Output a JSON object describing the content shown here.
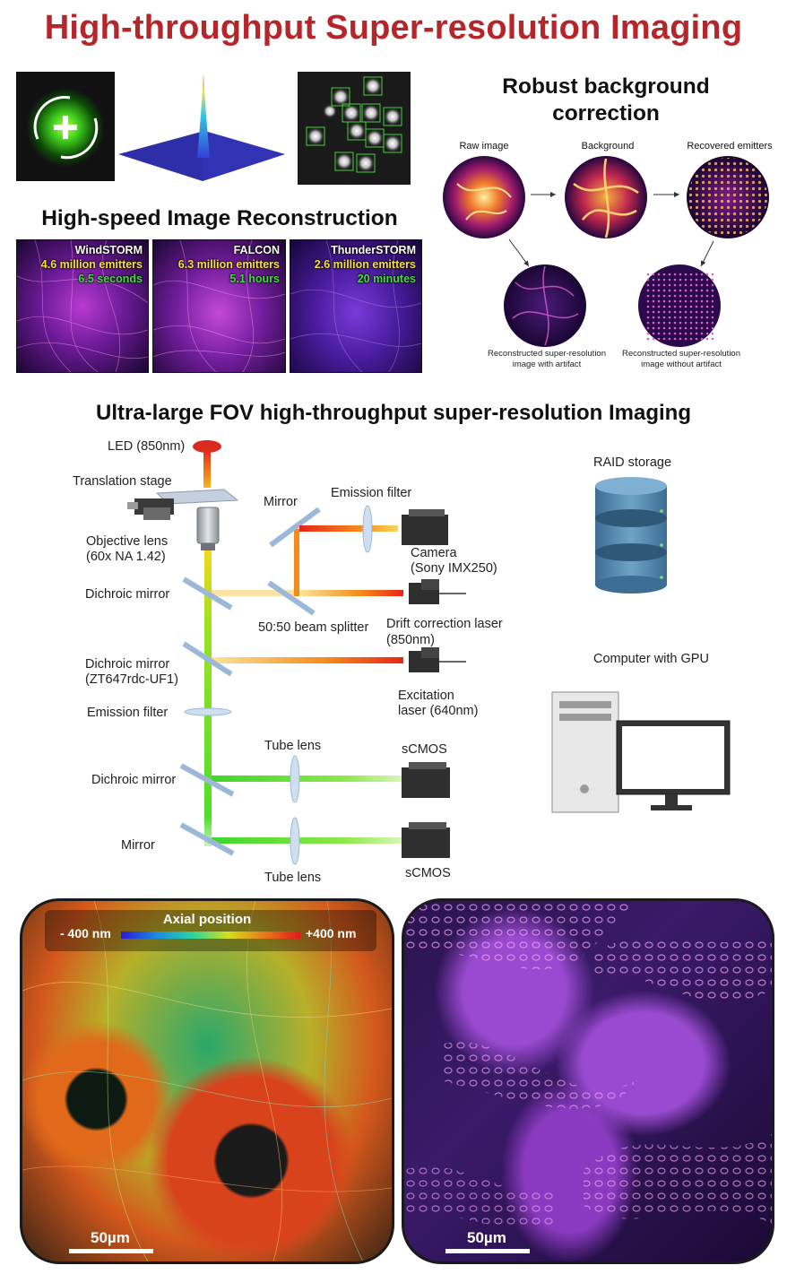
{
  "main_title": "High-throughput Super-resolution Imaging",
  "reconstruction": {
    "title": "High-speed Image Reconstruction",
    "tiles": [
      {
        "name": "WindSTORM",
        "count": "4.6 million emitters",
        "time": "6.5 seconds"
      },
      {
        "name": "FALCON",
        "count": "6.3 million emitters",
        "time": "5.1 hours"
      },
      {
        "name": "ThunderSTORM",
        "count": "2.6 million emitters",
        "time": "20 minutes"
      }
    ]
  },
  "background": {
    "title_line1": "Robust background",
    "title_line2": "correction",
    "raw": "Raw image",
    "bg": "Background",
    "recovered": "Recovered emitters",
    "with_artifact_1": "Reconstructed super-resolution",
    "with_artifact_2": "image with artifact",
    "without_artifact_1": "Reconstructed super-resolution",
    "without_artifact_2": "image without artifact"
  },
  "setup": {
    "title": "Ultra-large FOV high-throughput super-resolution Imaging",
    "led": "LED (850nm)",
    "stage": "Translation stage",
    "objective_1": "Objective lens",
    "objective_2": "(60x NA 1.42)",
    "dichroic1": "Dichroic mirror",
    "dichroic2_1": "Dichroic mirror",
    "dichroic2_2": "(ZT647rdc-UF1)",
    "emission_left": "Emission filter",
    "dichroic3": "Dichroic mirror",
    "mirror_bottom": "Mirror",
    "mirror_top": "Mirror",
    "emission_top": "Emission filter",
    "camera_1": "Camera",
    "camera_2": "(Sony IMX250)",
    "splitter": "50:50 beam splitter",
    "drift_1": "Drift correction laser",
    "drift_2": "(850nm)",
    "excitation_1": "Excitation",
    "excitation_2": "laser (640nm)",
    "tube_top": "Tube lens",
    "tube_bottom": "Tube lens",
    "scmos_top": "sCMOS",
    "scmos_bottom": "sCMOS",
    "raid": "RAID storage",
    "computer": "Computer with GPU"
  },
  "bottom": {
    "axial_title": "Axial position",
    "axial_min": "- 400 nm",
    "axial_max": "+400 nm",
    "scale_left": "50µm",
    "scale_right": "50µm"
  }
}
